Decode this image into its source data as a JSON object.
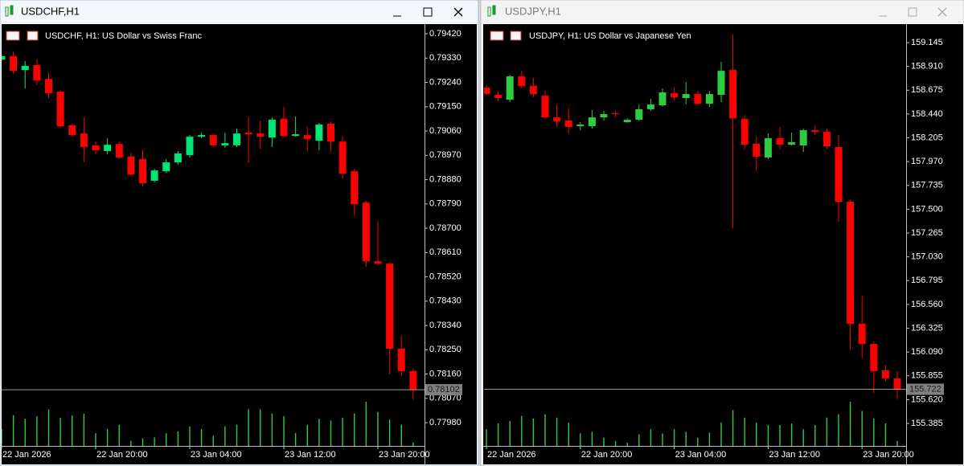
{
  "chart_data": [
    {
      "type": "candlestick",
      "title": "USDCHF,H1",
      "subtitle": "USDCHF, H1:  US Dollar vs Swiss Franc",
      "categories": [
        "22 Jan 2026",
        null,
        null,
        null,
        null,
        null,
        null,
        null,
        "22 Jan 20:00",
        null,
        null,
        null,
        null,
        null,
        null,
        null,
        "23 Jan 04:00",
        null,
        null,
        null,
        null,
        null,
        null,
        null,
        "23 Jan 12:00",
        null,
        null,
        null,
        null,
        null,
        null,
        null,
        "23 Jan 20:00",
        null,
        null,
        null
      ],
      "open": [
        0.79325,
        0.79337,
        0.79286,
        0.79304,
        0.79253,
        0.79206,
        0.79081,
        0.79051,
        0.79007,
        0.78986,
        0.79012,
        0.78965,
        0.78956,
        0.78876,
        0.78911,
        0.78944,
        0.78971,
        0.79039,
        0.79045,
        0.79007,
        0.79007,
        0.79054,
        0.79051,
        0.79036,
        0.79105,
        0.79042,
        0.79045,
        0.79024,
        0.79087,
        0.79021,
        0.78911,
        0.78795,
        0.78578,
        0.78569,
        0.78254,
        0.78171
      ],
      "high": [
        0.79343,
        0.79354,
        0.79319,
        0.79325,
        0.79277,
        0.79212,
        0.79087,
        0.79111,
        0.79021,
        0.79033,
        0.79021,
        0.7898,
        0.78992,
        0.7892,
        0.78956,
        0.78986,
        0.79045,
        0.79054,
        0.79051,
        0.79054,
        0.79069,
        0.79111,
        0.79099,
        0.79111,
        0.79149,
        0.79114,
        0.79075,
        0.7909,
        0.79096,
        0.79039,
        0.7892,
        0.78801,
        0.78727,
        0.78575,
        0.78301,
        0.78182
      ],
      "low": [
        0.79319,
        0.79271,
        0.79218,
        0.7923,
        0.79182,
        0.79075,
        0.79039,
        0.78944,
        0.78974,
        0.78974,
        0.78956,
        0.78893,
        0.78855,
        0.7887,
        0.78905,
        0.78935,
        0.78962,
        0.79033,
        0.79001,
        0.78998,
        0.79001,
        0.78941,
        0.78992,
        0.79001,
        0.79036,
        0.79039,
        0.78986,
        0.78989,
        0.78986,
        0.78885,
        0.78748,
        0.78557,
        0.78563,
        0.78159,
        0.78153,
        0.78066
      ],
      "close": [
        0.79337,
        0.79283,
        0.79301,
        0.79247,
        0.792,
        0.79078,
        0.79045,
        0.79001,
        0.78989,
        0.79009,
        0.78962,
        0.78899,
        0.78867,
        0.78914,
        0.78944,
        0.78977,
        0.79039,
        0.79045,
        0.79007,
        0.79015,
        0.79051,
        0.79048,
        0.79039,
        0.79102,
        0.79042,
        0.79048,
        0.7903,
        0.79084,
        0.79021,
        0.78902,
        0.78789,
        0.78578,
        0.78569,
        0.78254,
        0.78171,
        0.78102
      ],
      "volume": [
        20,
        36,
        32,
        35,
        43,
        33,
        36,
        38,
        15,
        20,
        25,
        6,
        9,
        10,
        15,
        17,
        23,
        20,
        12,
        23,
        25,
        43,
        43,
        38,
        35,
        15,
        25,
        32,
        30,
        33,
        38,
        52,
        40,
        31,
        25,
        4
      ],
      "ylim": [
        0.77894,
        0.7945
      ],
      "yticks": [
        {
          "value": 0.7942,
          "label": "0.79420"
        },
        {
          "value": 0.7933,
          "label": "0.79330"
        },
        {
          "value": 0.7924,
          "label": "0.79240"
        },
        {
          "value": 0.7915,
          "label": "0.79150"
        },
        {
          "value": 0.7906,
          "label": "0.79060"
        },
        {
          "value": 0.7897,
          "label": "0.78970"
        },
        {
          "value": 0.7888,
          "label": "0.78880"
        },
        {
          "value": 0.7879,
          "label": "0.78790"
        },
        {
          "value": 0.787,
          "label": "0.78700"
        },
        {
          "value": 0.7861,
          "label": "0.78610"
        },
        {
          "value": 0.7852,
          "label": "0.78520"
        },
        {
          "value": 0.7843,
          "label": "0.78430"
        },
        {
          "value": 0.7834,
          "label": "0.78340"
        },
        {
          "value": 0.7825,
          "label": "0.78250"
        },
        {
          "value": 0.7816,
          "label": "0.78160"
        },
        {
          "value": 0.7807,
          "label": "0.78070"
        },
        {
          "value": 0.7798,
          "label": "0.77980"
        }
      ],
      "current_price": 0.78102,
      "up_color": "#00e676",
      "down_color": "#ff0000",
      "volume_color": "#2ecc40"
    },
    {
      "type": "candlestick",
      "title": "USDJPY,H1",
      "subtitle": "USDJPY, H1:  US Dollar vs Japanese Yen",
      "categories": [
        "22 Jan 2026",
        null,
        null,
        null,
        null,
        null,
        null,
        null,
        "22 Jan 20:00",
        null,
        null,
        null,
        null,
        null,
        null,
        null,
        "23 Jan 04:00",
        null,
        null,
        null,
        null,
        null,
        null,
        null,
        "23 Jan 12:00",
        null,
        null,
        null,
        null,
        null,
        null,
        null,
        "23 Jan 20:00",
        null,
        null,
        null
      ],
      "open": [
        158.701,
        158.629,
        158.582,
        158.812,
        158.717,
        158.621,
        158.407,
        158.376,
        158.32,
        158.32,
        158.407,
        158.447,
        158.36,
        158.383,
        158.487,
        158.526,
        158.645,
        158.598,
        158.637,
        158.542,
        158.629,
        158.875,
        158.391,
        158.146,
        158.011,
        158.201,
        158.138,
        158.13,
        158.28,
        158.264,
        158.114,
        157.574,
        156.369,
        156.17,
        155.909,
        155.829
      ],
      "high": [
        158.725,
        158.661,
        158.828,
        158.867,
        158.796,
        158.669,
        158.534,
        158.495,
        158.36,
        158.479,
        158.471,
        158.471,
        158.399,
        158.534,
        158.59,
        158.693,
        158.701,
        158.756,
        158.669,
        158.669,
        158.955,
        159.224,
        158.431,
        158.217,
        158.249,
        158.312,
        158.257,
        158.296,
        158.328,
        158.296,
        158.233,
        157.59,
        156.646,
        156.194,
        155.964,
        155.901
      ],
      "low": [
        158.629,
        158.566,
        158.558,
        158.693,
        158.606,
        158.399,
        158.312,
        158.249,
        158.28,
        158.296,
        158.376,
        158.407,
        158.352,
        158.376,
        158.471,
        158.51,
        158.574,
        158.534,
        158.518,
        158.51,
        158.558,
        157.313,
        158.09,
        157.876,
        157.995,
        158.09,
        158.13,
        158.066,
        158.233,
        158.09,
        157.376,
        156.115,
        156.028,
        155.686,
        155.797,
        155.623
      ],
      "close": [
        158.637,
        158.598,
        158.812,
        158.717,
        158.637,
        158.407,
        158.368,
        158.312,
        158.336,
        158.407,
        158.439,
        158.439,
        158.383,
        158.487,
        158.534,
        158.653,
        158.606,
        158.637,
        158.542,
        158.637,
        158.867,
        158.399,
        158.138,
        158.019,
        158.201,
        158.138,
        158.161,
        158.28,
        158.264,
        158.122,
        157.574,
        156.369,
        156.17,
        155.901,
        155.829,
        155.722
      ],
      "volume": [
        20,
        27,
        30,
        36,
        33,
        38,
        34,
        28,
        15,
        17,
        10,
        6,
        4,
        14,
        20,
        15,
        20,
        17,
        10,
        16,
        28,
        43,
        34,
        28,
        25,
        25,
        27,
        20,
        25,
        34,
        38,
        53,
        42,
        33,
        27,
        6
      ],
      "ylim": [
        155.163,
        159.312
      ],
      "yticks": [
        159.145,
        {
          "value": 158.91,
          "label": "158.910"
        },
        158.675,
        {
          "value": 158.44,
          "label": "158.440"
        },
        158.205,
        {
          "value": 157.97,
          "label": "157.970"
        },
        157.735,
        {
          "value": 157.5,
          "label": "157.500"
        },
        157.265,
        {
          "value": 157.03,
          "label": "157.030"
        },
        156.795,
        {
          "value": 156.56,
          "label": "156.560"
        },
        156.325,
        {
          "value": 156.09,
          "label": "156.090"
        },
        155.855,
        {
          "value": 155.62,
          "label": "155.620"
        },
        155.385
      ],
      "current_price": 155.722,
      "up_color": "#2ecc40",
      "down_color": "#ff0000",
      "volume_color": "#2ecc40"
    }
  ]
}
